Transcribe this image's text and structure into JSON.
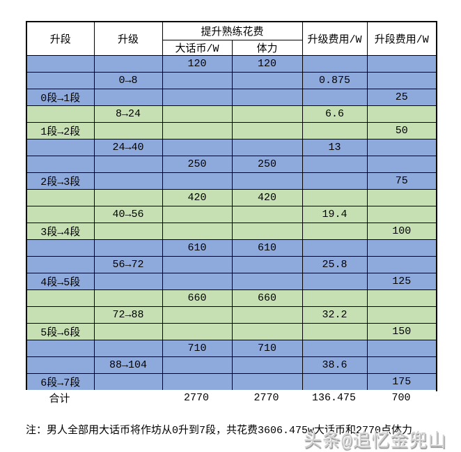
{
  "chart_data": {
    "type": "table",
    "header": {
      "rank": "升段",
      "upgrade": "升级",
      "proficiency_group": "提升熟练花费",
      "coin": "大话币/W",
      "stamina": "体力",
      "upgrade_fee": "升级费用/W",
      "rank_fee": "升段费用/W"
    },
    "columns": [
      "升段",
      "升级",
      "大话币/W",
      "体力",
      "升级费用/W",
      "升段费用/W"
    ],
    "rows": [
      {
        "bg": "blue",
        "cells": [
          "",
          "",
          "120",
          "120",
          "",
          ""
        ]
      },
      {
        "bg": "blue",
        "cells": [
          "",
          "0→8",
          "",
          "",
          "0.875",
          ""
        ]
      },
      {
        "bg": "blue",
        "cells": [
          "0段→1段",
          "",
          "",
          "",
          "",
          "25"
        ]
      },
      {
        "bg": "green",
        "cells": [
          "",
          "8→24",
          "",
          "",
          "6.6",
          ""
        ]
      },
      {
        "bg": "green",
        "cells": [
          "1段→2段",
          "",
          "",
          "",
          "",
          "50"
        ]
      },
      {
        "bg": "blue",
        "cells": [
          "",
          "24→40",
          "",
          "",
          "13",
          ""
        ]
      },
      {
        "bg": "blue",
        "cells": [
          "",
          "",
          "250",
          "250",
          "",
          ""
        ]
      },
      {
        "bg": "blue",
        "cells": [
          "2段→3段",
          "",
          "",
          "",
          "",
          "75"
        ]
      },
      {
        "bg": "green",
        "cells": [
          "",
          "",
          "420",
          "420",
          "",
          ""
        ]
      },
      {
        "bg": "green",
        "cells": [
          "",
          "40→56",
          "",
          "",
          "19.4",
          ""
        ]
      },
      {
        "bg": "green",
        "cells": [
          "3段→4段",
          "",
          "",
          "",
          "",
          "100"
        ]
      },
      {
        "bg": "blue",
        "cells": [
          "",
          "",
          "610",
          "610",
          "",
          ""
        ]
      },
      {
        "bg": "blue",
        "cells": [
          "",
          "56→72",
          "",
          "",
          "25.8",
          ""
        ]
      },
      {
        "bg": "blue",
        "cells": [
          "4段→5段",
          "",
          "",
          "",
          "",
          "125"
        ]
      },
      {
        "bg": "green",
        "cells": [
          "",
          "",
          "660",
          "660",
          "",
          ""
        ]
      },
      {
        "bg": "green",
        "cells": [
          "",
          "72→88",
          "",
          "",
          "32.2",
          ""
        ]
      },
      {
        "bg": "green",
        "cells": [
          "5段→6段",
          "",
          "",
          "",
          "",
          "150"
        ]
      },
      {
        "bg": "blue",
        "cells": [
          "",
          "",
          "710",
          "710",
          "",
          ""
        ]
      },
      {
        "bg": "blue",
        "cells": [
          "",
          "88→104",
          "",
          "",
          "38.6",
          ""
        ]
      },
      {
        "bg": "blue",
        "cells": [
          "6段→7段",
          "",
          "",
          "",
          "",
          "175"
        ]
      }
    ],
    "totals": [
      "合计",
      "",
      "2770",
      "2770",
      "136.475",
      "700"
    ]
  },
  "note": "注：男人全部用大话币将作坊从0升到7段，共花费3606.475w大话币和2770点体力",
  "watermark": "头条@追忆金兜山",
  "colors": {
    "row_blue": "#8EA9DB",
    "row_green": "#C6E0B4",
    "border": "#000000",
    "watermark_gray": "#CFCFCF"
  }
}
